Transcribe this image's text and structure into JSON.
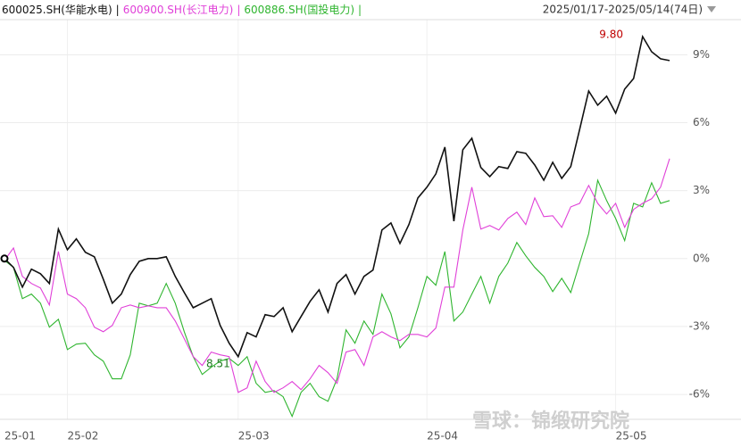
{
  "chart_data": {
    "type": "line",
    "date_range": "2025/01/17-2025/05/14(74日)",
    "legend_separator": "|",
    "watermark": "雪球：锦缎研究院",
    "annotations": [
      "9.80",
      "8.51"
    ],
    "categories": [
      "25-01",
      null,
      null,
      null,
      null,
      null,
      null,
      "25-02",
      null,
      null,
      null,
      null,
      null,
      null,
      null,
      null,
      null,
      null,
      null,
      null,
      null,
      null,
      null,
      null,
      null,
      null,
      "25-03",
      null,
      null,
      null,
      null,
      null,
      null,
      null,
      null,
      null,
      null,
      null,
      null,
      null,
      null,
      null,
      null,
      null,
      null,
      null,
      null,
      "25-04",
      null,
      null,
      null,
      null,
      null,
      null,
      null,
      null,
      null,
      null,
      null,
      null,
      null,
      null,
      null,
      null,
      null,
      null,
      null,
      null,
      "25-05",
      null,
      null,
      null,
      null,
      null,
      null
    ],
    "ylim": [
      -7.1,
      10.55
    ],
    "yticks": [
      {
        "value": 9,
        "label": "9%"
      },
      {
        "value": 6,
        "label": "6%"
      },
      {
        "value": 3,
        "label": "3%"
      },
      {
        "value": 0,
        "label": "0%"
      },
      {
        "value": -3,
        "label": "-3%"
      },
      {
        "value": -6,
        "label": "-6%"
      }
    ],
    "grid": true,
    "series": [
      {
        "name": "600025.SH(华能水电)",
        "color": "#111111",
        "values": [
          0,
          -0.39,
          -1.26,
          -0.47,
          -0.67,
          -1.1,
          1.3,
          0.39,
          0.87,
          0.28,
          0.08,
          -0.91,
          -1.97,
          -1.57,
          -0.71,
          -0.12,
          0,
          0,
          0.08,
          -0.79,
          -1.5,
          -2.17,
          -1.97,
          -1.77,
          -2.95,
          -3.74,
          -4.33,
          -3.27,
          -3.46,
          -2.48,
          -2.56,
          -2.17,
          -3.23,
          -2.56,
          -1.89,
          -1.38,
          -2.36,
          -1.1,
          -0.71,
          -1.57,
          -0.79,
          -0.51,
          1.26,
          1.57,
          0.67,
          1.5,
          2.68,
          3.15,
          3.74,
          4.92,
          1.65,
          4.8,
          5.31,
          4.02,
          3.62,
          4.06,
          3.98,
          4.72,
          4.65,
          4.13,
          3.46,
          4.25,
          3.54,
          4.06,
          5.71,
          7.4,
          6.77,
          7.17,
          6.42,
          7.48,
          7.95,
          9.8,
          9.13,
          8.82,
          8.74
        ]
      },
      {
        "name": "600900.SH(长江电力)",
        "color": "#e040d8",
        "values": [
          -0.08,
          0.47,
          -0.79,
          -1.1,
          -1.3,
          -2.05,
          0.31,
          -1.57,
          -1.77,
          -2.17,
          -3.03,
          -3.23,
          -2.95,
          -2.17,
          -2.05,
          -2.17,
          -2.09,
          -2.17,
          -2.17,
          -2.76,
          -3.54,
          -4.33,
          -4.72,
          -4.13,
          -4.25,
          -4.33,
          -5.91,
          -5.71,
          -4.53,
          -5.43,
          -5.91,
          -5.71,
          -5.43,
          -5.79,
          -5.31,
          -4.72,
          -5.04,
          -5.51,
          -4.13,
          -4.02,
          -4.72,
          -3.46,
          -3.23,
          -3.46,
          -3.62,
          -3.35,
          -3.35,
          -3.46,
          -3.07,
          -1.26,
          -1.26,
          1.26,
          3.15,
          1.3,
          1.46,
          1.26,
          1.77,
          2.05,
          1.5,
          2.68,
          1.85,
          1.89,
          1.38,
          2.28,
          2.44,
          3.23,
          2.44,
          1.97,
          2.44,
          1.38,
          2.17,
          2.44,
          2.64,
          3.15,
          4.41
        ]
      },
      {
        "name": "600886.SH(国投电力)",
        "color": "#2fb52f",
        "values": [
          -0.08,
          -0.39,
          -1.77,
          -1.57,
          -1.97,
          -3.03,
          -2.68,
          -4.02,
          -3.78,
          -3.74,
          -4.25,
          -4.53,
          -5.31,
          -5.31,
          -4.25,
          -1.97,
          -2.09,
          -1.97,
          -1.1,
          -1.97,
          -3.23,
          -4.33,
          -5.12,
          -4.8,
          -4.53,
          -4.41,
          -4.72,
          -4.33,
          -5.51,
          -5.91,
          -5.83,
          -6.1,
          -6.97,
          -5.91,
          -5.51,
          -6.1,
          -6.3,
          -5.31,
          -3.15,
          -3.74,
          -2.76,
          -3.35,
          -1.57,
          -2.44,
          -3.94,
          -3.46,
          -2.17,
          -0.79,
          -1.18,
          0.31,
          -2.76,
          -2.36,
          -1.57,
          -0.79,
          -1.97,
          -0.79,
          -0.2,
          0.71,
          0.12,
          -0.39,
          -0.79,
          -1.46,
          -0.87,
          -1.5,
          -0.2,
          1.1,
          3.46,
          2.56,
          1.77,
          0.79,
          2.44,
          2.28,
          3.35,
          2.44,
          2.56
        ]
      }
    ]
  }
}
